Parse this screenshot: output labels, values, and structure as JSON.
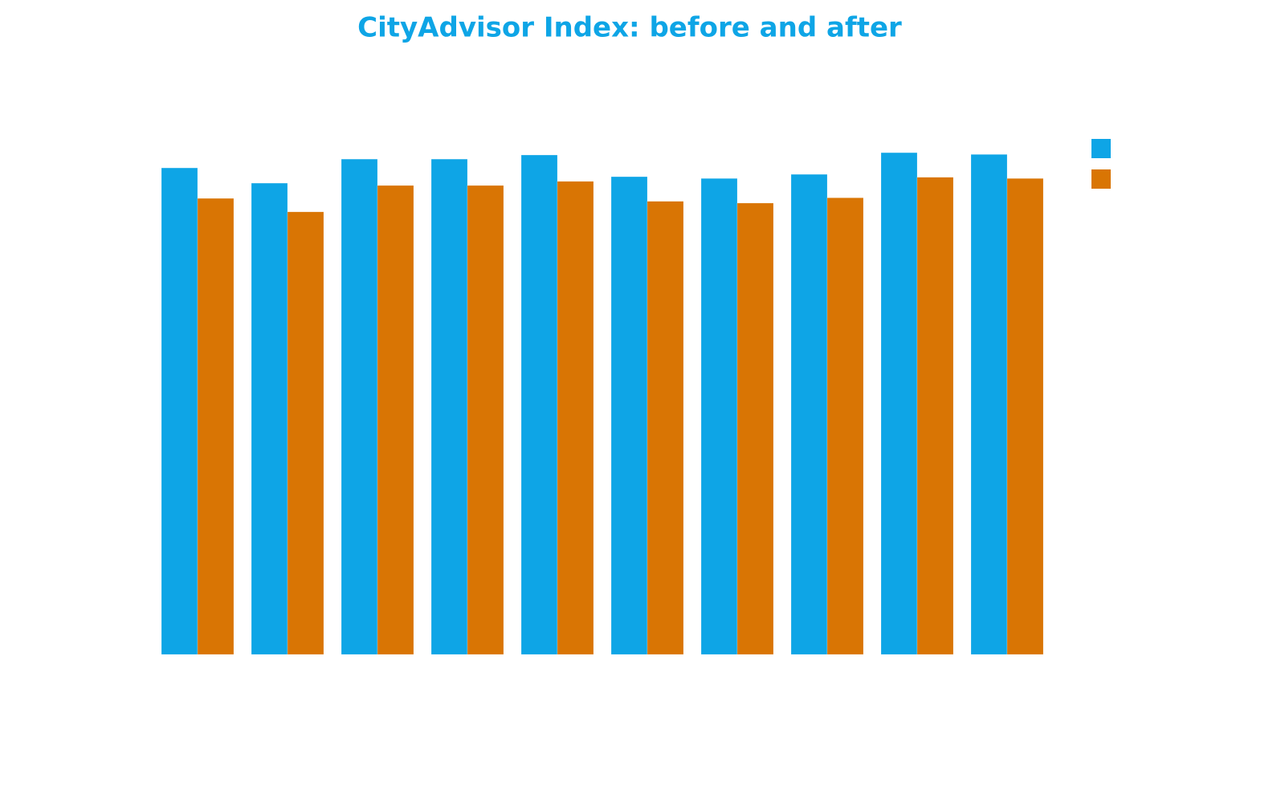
{
  "chart_data": {
    "type": "bar",
    "title": "CityAdvisor Index: before and after",
    "categories": [
      null,
      null,
      null,
      null,
      null,
      null,
      null,
      null,
      null,
      null
    ],
    "series": [
      {
        "color": "#0ea5e6",
        "values": [
          83.0,
          80.4,
          84.5,
          84.5,
          85.2,
          81.5,
          81.2,
          81.9,
          85.6,
          85.3
        ]
      },
      {
        "color": "#d97504",
        "values": [
          77.8,
          75.5,
          80.0,
          80.0,
          80.7,
          77.3,
          77.0,
          77.9,
          81.4,
          81.2
        ]
      }
    ],
    "ylim": [
      0,
      100
    ],
    "legend": "right"
  }
}
